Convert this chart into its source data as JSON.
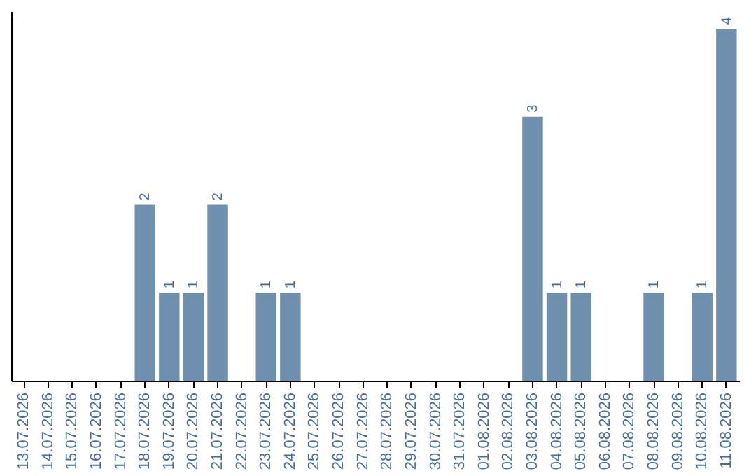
{
  "chart_data": {
    "type": "bar",
    "categories": [
      "13.07.2026",
      "14.07.2026",
      "15.07.2026",
      "16.07.2026",
      "17.07.2026",
      "18.07.2026",
      "19.07.2026",
      "20.07.2026",
      "21.07.2026",
      "22.07.2026",
      "23.07.2026",
      "24.07.2026",
      "25.07.2026",
      "26.07.2026",
      "27.07.2026",
      "28.07.2026",
      "29.07.2026",
      "30.07.2026",
      "31.07.2026",
      "01.08.2026",
      "02.08.2026",
      "03.08.2026",
      "04.08.2026",
      "05.08.2026",
      "06.08.2026",
      "07.08.2026",
      "08.08.2026",
      "09.08.2026",
      "10.08.2026",
      "11.08.2026"
    ],
    "values": [
      0,
      0,
      0,
      0,
      0,
      2,
      1,
      1,
      2,
      0,
      1,
      1,
      0,
      0,
      0,
      0,
      0,
      0,
      0,
      0,
      0,
      3,
      1,
      1,
      0,
      0,
      1,
      0,
      1,
      4
    ],
    "value_labels": [
      null,
      null,
      null,
      null,
      null,
      "2",
      "1",
      "1",
      "2",
      null,
      "1",
      "1",
      null,
      null,
      null,
      null,
      null,
      null,
      null,
      null,
      null,
      "3",
      "1",
      "1",
      null,
      null,
      "1",
      null,
      "1",
      "4"
    ],
    "color": "#6e8fad",
    "ylim": [
      0,
      4.2
    ],
    "tick_labels": "x",
    "grid": false
  }
}
